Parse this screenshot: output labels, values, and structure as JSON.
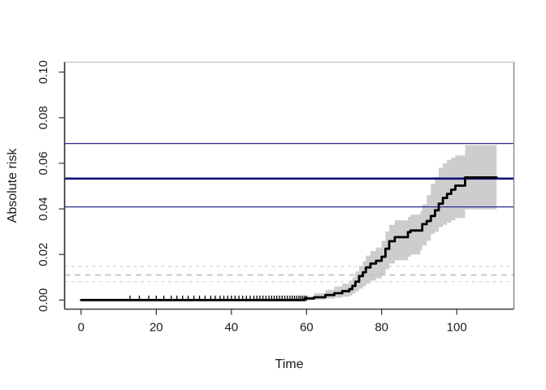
{
  "window": {
    "background": "#ffffff"
  },
  "chart_data": {
    "type": "line",
    "subtype": "step-function-with-confidence-band",
    "title": "",
    "xlabel": "Time",
    "ylabel": "Absolute risk",
    "xlim": [
      -4.4,
      115.2
    ],
    "ylim": [
      -0.004,
      0.1044
    ],
    "x_ticks": [
      0,
      20,
      40,
      60,
      80,
      100
    ],
    "x_tick_labels": [
      "0",
      "20",
      "40",
      "60",
      "80",
      "100"
    ],
    "y_ticks": [
      0.0,
      0.02,
      0.04,
      0.06,
      0.08,
      0.1
    ],
    "y_tick_labels": [
      "0.00",
      "0.02",
      "0.04",
      "0.06",
      "0.08",
      "0.10"
    ],
    "grid": false,
    "legend": "none",
    "colors": {
      "curve": "#000000",
      "band": "#cdcdcd",
      "reference_navy_thick": "#11117a",
      "reference_navy_thin": "#2a2a96",
      "reference_dashed_mid": "#bdbdbd",
      "reference_dashed_outer": "#d8d8d8",
      "box_top": "#c4c4c4",
      "box_right": "#7e7e7e",
      "box_bottom": "#3c3c3c",
      "box_left": "#2d2d2d",
      "tick": "#2d2d2d",
      "text": "#1a1a1a"
    },
    "curve": {
      "name": "absolute-risk-step-curve",
      "line_width": 2.8,
      "points": [
        [
          0,
          0.0
        ],
        [
          59.5,
          0.0007
        ],
        [
          62,
          0.0012
        ],
        [
          65,
          0.0022
        ],
        [
          67.4,
          0.003
        ],
        [
          69.5,
          0.0039
        ],
        [
          71.4,
          0.0048
        ],
        [
          72.2,
          0.0062
        ],
        [
          73,
          0.0081
        ],
        [
          74,
          0.0105
        ],
        [
          75,
          0.0122
        ],
        [
          75.8,
          0.0143
        ],
        [
          77,
          0.016
        ],
        [
          78.5,
          0.0172
        ],
        [
          80,
          0.019
        ],
        [
          81,
          0.0225
        ],
        [
          82,
          0.0258
        ],
        [
          83.5,
          0.0276
        ],
        [
          87,
          0.0298
        ],
        [
          87.7,
          0.0305
        ],
        [
          90.8,
          0.0333
        ],
        [
          92,
          0.0347
        ],
        [
          93.1,
          0.0369
        ],
        [
          94.2,
          0.0394
        ],
        [
          95.2,
          0.0423
        ],
        [
          96.3,
          0.0448
        ],
        [
          97.4,
          0.0466
        ],
        [
          98.5,
          0.0484
        ],
        [
          99.6,
          0.0502
        ],
        [
          102.2,
          0.0538
        ],
        [
          110.6,
          0.0538
        ]
      ]
    },
    "band": {
      "name": "confidence-band",
      "points_t_lo_hi": [
        [
          59.5,
          0.0,
          0.0015
        ],
        [
          62,
          0.0002,
          0.003
        ],
        [
          65,
          0.0006,
          0.0045
        ],
        [
          67.4,
          0.001,
          0.006
        ],
        [
          69.5,
          0.0015,
          0.0072
        ],
        [
          71.4,
          0.002,
          0.0085
        ],
        [
          72.2,
          0.0028,
          0.01
        ],
        [
          73,
          0.0038,
          0.0125
        ],
        [
          74,
          0.005,
          0.015
        ],
        [
          75,
          0.006,
          0.017
        ],
        [
          75.8,
          0.0072,
          0.0195
        ],
        [
          77,
          0.0085,
          0.0215
        ],
        [
          78.5,
          0.0095,
          0.023
        ],
        [
          80,
          0.011,
          0.026
        ],
        [
          81,
          0.0135,
          0.03
        ],
        [
          82,
          0.016,
          0.033
        ],
        [
          83.5,
          0.0175,
          0.035
        ],
        [
          87,
          0.019,
          0.0365
        ],
        [
          87.7,
          0.02,
          0.0375
        ],
        [
          90.3,
          0.022,
          0.039
        ],
        [
          90.8,
          0.024,
          0.042
        ],
        [
          92,
          0.026,
          0.046
        ],
        [
          93.1,
          0.029,
          0.051
        ],
        [
          94.2,
          0.03,
          0.054
        ],
        [
          95.2,
          0.032,
          0.058
        ],
        [
          96.3,
          0.033,
          0.06
        ],
        [
          97.4,
          0.034,
          0.0615
        ],
        [
          98.5,
          0.035,
          0.0625
        ],
        [
          99.6,
          0.036,
          0.0635
        ],
        [
          102.2,
          0.0398,
          0.068
        ],
        [
          110.6,
          0.0398,
          0.068
        ]
      ]
    },
    "reference_lines_solid": {
      "color_role": "navy",
      "estimate": 0.0533,
      "ci": [
        0.0409,
        0.0687
      ],
      "items": [
        {
          "y": 0.0687,
          "width": 1.2
        },
        {
          "y": 0.0533,
          "width": 2.6
        },
        {
          "y": 0.0409,
          "width": 1.2
        }
      ]
    },
    "reference_lines_dashed": {
      "color_role": "gray",
      "estimate": 0.011,
      "ci": [
        0.0081,
        0.0148
      ],
      "items": [
        {
          "y": 0.0148,
          "dash": "4 4.5",
          "shade": "outer"
        },
        {
          "y": 0.011,
          "dash": "7 5.5",
          "shade": "mid"
        },
        {
          "y": 0.0081,
          "dash": "4 4.5",
          "shade": "outer"
        }
      ]
    },
    "censor_marks_t": [
      13,
      15.5,
      18,
      20,
      22,
      24,
      25.5,
      27,
      28.5,
      30,
      31.5,
      33,
      34.5,
      35.7,
      37,
      38,
      39,
      40,
      41,
      42,
      43,
      44,
      45,
      46,
      46.8,
      47.6,
      48.4,
      49.2,
      50,
      50.7,
      51.4,
      52.1,
      52.8,
      53.5,
      54.2,
      54.9,
      55.6,
      56.2,
      56.8,
      57.4,
      58,
      58.5,
      59,
      59.5,
      60
    ]
  }
}
